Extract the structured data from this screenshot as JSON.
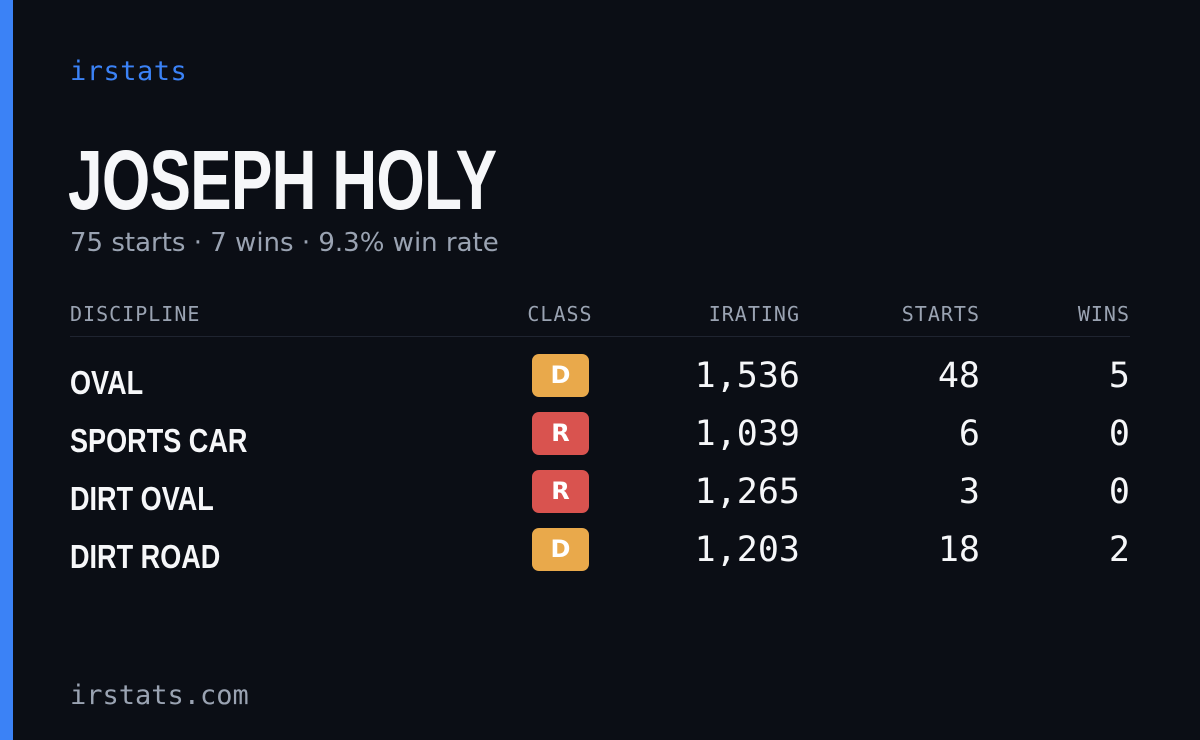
{
  "brand": "irstats",
  "driver": {
    "name": "JOSEPH HOLY",
    "summary": "75 starts · 7 wins · 9.3% win rate"
  },
  "table": {
    "headers": {
      "discipline": "DISCIPLINE",
      "class": "CLASS",
      "irating": "IRATING",
      "starts": "STARTS",
      "wins": "WINS"
    },
    "rows": [
      {
        "discipline": "OVAL",
        "class": "D",
        "class_color": "#e9a94b",
        "irating": "1,536",
        "starts": "48",
        "wins": "5"
      },
      {
        "discipline": "SPORTS CAR",
        "class": "R",
        "class_color": "#d9534f",
        "irating": "1,039",
        "starts": "6",
        "wins": "0"
      },
      {
        "discipline": "DIRT OVAL",
        "class": "R",
        "class_color": "#d9534f",
        "irating": "1,265",
        "starts": "3",
        "wins": "0"
      },
      {
        "discipline": "DIRT ROAD",
        "class": "D",
        "class_color": "#e9a94b",
        "irating": "1,203",
        "starts": "18",
        "wins": "2"
      }
    ]
  },
  "footer": "irstats.com",
  "colors": {
    "background": "#0b0e15",
    "accent": "#3b82f6",
    "text": "#f6f7f9",
    "muted": "#9aa3b2"
  }
}
